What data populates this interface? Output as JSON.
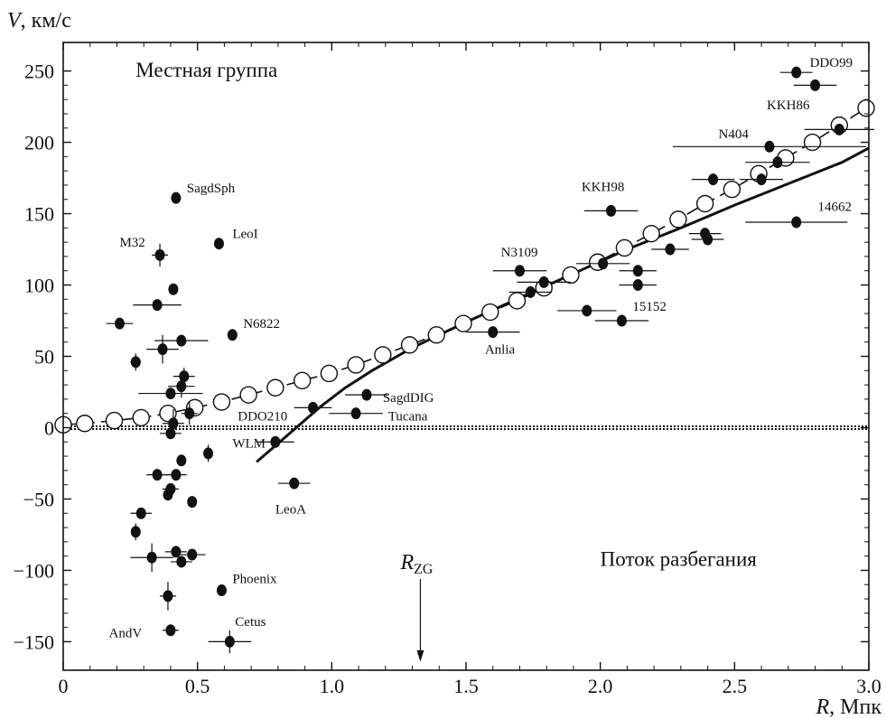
{
  "chart_data": {
    "type": "scatter",
    "title": "",
    "y_title": {
      "italic": "V",
      "rest": ", км/с"
    },
    "x_title": {
      "italic": "R",
      "rest": ", Мпк"
    },
    "xlim": [
      0,
      3.0
    ],
    "ylim": [
      -170,
      270
    ],
    "x_ticks": [
      {
        "value": 0,
        "label": "0"
      },
      {
        "value": 0.5,
        "label": "0.5"
      },
      {
        "value": 1.0,
        "label": "1.0"
      },
      {
        "value": 1.5,
        "label": "1.5"
      },
      {
        "value": 2.0,
        "label": "2.0"
      },
      {
        "value": 2.5,
        "label": "2.5"
      },
      {
        "value": 3.0,
        "label": "3.0"
      }
    ],
    "y_ticks": [
      {
        "value": -150,
        "label": "−150"
      },
      {
        "value": -100,
        "label": "−100"
      },
      {
        "value": -50,
        "label": "−50"
      },
      {
        "value": 0,
        "label": "0"
      },
      {
        "value": 50,
        "label": "50"
      },
      {
        "value": 100,
        "label": "100"
      },
      {
        "value": 150,
        "label": "150"
      },
      {
        "value": 200,
        "label": "200"
      },
      {
        "value": 250,
        "label": "250"
      }
    ],
    "region_labels": [
      {
        "text": "Местная группа",
        "x": 0.27,
        "y": 246
      },
      {
        "text": "Поток разбегания",
        "x": 2.0,
        "y": -97
      }
    ],
    "r_zg": {
      "label_main": "R",
      "label_sub": "ZG",
      "x": 1.33
    },
    "open_circles": {
      "x": [
        0,
        0.08,
        0.19,
        0.29,
        0.39,
        0.49,
        0.59,
        0.69,
        0.79,
        0.89,
        0.99,
        1.09,
        1.19,
        1.29,
        1.39,
        1.49,
        1.59,
        1.69,
        1.79,
        1.89,
        1.99,
        2.09,
        2.19,
        2.29,
        2.39,
        2.49,
        2.59,
        2.69,
        2.79,
        2.89,
        2.99
      ],
      "y": [
        2,
        3,
        5,
        7,
        10,
        14,
        18,
        23,
        28,
        33,
        38,
        44,
        51,
        58,
        65,
        73,
        81,
        89,
        98,
        107,
        116,
        126,
        136,
        146,
        157,
        167,
        178,
        189,
        200,
        212,
        224
      ]
    },
    "model_curve": {
      "x": [
        0.72,
        0.8,
        0.88,
        0.96,
        1.05,
        1.15,
        1.3,
        1.5,
        1.7,
        1.9,
        2.1,
        2.3,
        2.5,
        2.7,
        2.9,
        3.0
      ],
      "y": [
        -24,
        -11,
        2,
        15,
        28,
        40,
        56,
        74,
        91,
        108,
        125,
        140,
        156,
        171,
        186,
        196
      ]
    },
    "galaxies": [
      {
        "x": 0.42,
        "y": 161,
        "xerr": 0,
        "yerr": 0,
        "name": "SagdSph",
        "lx": 0.46,
        "ly": 165
      },
      {
        "x": 0.36,
        "y": 121,
        "xerr": 0.03,
        "yerr": 8,
        "name": "M32",
        "lx": 0.21,
        "ly": 127
      },
      {
        "x": 0.58,
        "y": 129,
        "xerr": 0,
        "yerr": 0,
        "name": "LeoI",
        "lx": 0.63,
        "ly": 133
      },
      {
        "x": 0.41,
        "y": 97,
        "xerr": 0,
        "yerr": 0,
        "name": "",
        "lx": 0,
        "ly": 0
      },
      {
        "x": 0.35,
        "y": 86,
        "xerr": 0.09,
        "yerr": 0,
        "name": "",
        "lx": 0,
        "ly": 0
      },
      {
        "x": 0.21,
        "y": 73,
        "xerr": 0.05,
        "yerr": 0,
        "name": "",
        "lx": 0,
        "ly": 0
      },
      {
        "x": 0.63,
        "y": 65,
        "xerr": 0,
        "yerr": 0,
        "name": "N6822",
        "lx": 0.67,
        "ly": 70
      },
      {
        "x": 0.44,
        "y": 61,
        "xerr": 0.1,
        "yerr": 0,
        "name": "",
        "lx": 0,
        "ly": 0
      },
      {
        "x": 0.37,
        "y": 55,
        "xerr": 0.06,
        "yerr": 10,
        "name": "",
        "lx": 0,
        "ly": 0
      },
      {
        "x": 0.27,
        "y": 46,
        "xerr": 0.02,
        "yerr": 6,
        "name": "",
        "lx": 0,
        "ly": 0
      },
      {
        "x": 0.45,
        "y": 36,
        "xerr": 0.04,
        "yerr": 6,
        "name": "",
        "lx": 0,
        "ly": 0
      },
      {
        "x": 0.44,
        "y": 29,
        "xerr": 0.05,
        "yerr": 8,
        "name": "",
        "lx": 0,
        "ly": 0
      },
      {
        "x": 0.4,
        "y": 24,
        "xerr": 0.12,
        "yerr": 0,
        "name": "",
        "lx": 0,
        "ly": 0
      },
      {
        "x": 0.47,
        "y": 10,
        "xerr": 0.03,
        "yerr": 8,
        "name": "",
        "lx": 0,
        "ly": 0
      },
      {
        "x": 0.41,
        "y": 3,
        "xerr": 0.04,
        "yerr": 10,
        "name": "",
        "lx": 0,
        "ly": 0
      },
      {
        "x": 0.4,
        "y": -4,
        "xerr": 0.04,
        "yerr": 0,
        "name": "",
        "lx": 0,
        "ly": 0
      },
      {
        "x": 0.93,
        "y": 14,
        "xerr": 0.07,
        "yerr": 0,
        "name": "DDO210",
        "lx": 0.65,
        "ly": 5
      },
      {
        "x": 1.13,
        "y": 23,
        "xerr": 0.08,
        "yerr": 0,
        "name": "SagdDIG",
        "lx": 1.19,
        "ly": 18
      },
      {
        "x": 1.09,
        "y": 10,
        "xerr": 0.1,
        "yerr": 0,
        "name": "Tucana",
        "lx": 1.21,
        "ly": 5
      },
      {
        "x": 0.79,
        "y": -10,
        "xerr": 0.07,
        "yerr": 0,
        "name": "WLM",
        "lx": 0.63,
        "ly": -14
      },
      {
        "x": 0.54,
        "y": -18,
        "xerr": 0,
        "yerr": 6,
        "name": "",
        "lx": 0,
        "ly": 0
      },
      {
        "x": 0.44,
        "y": -23,
        "xerr": 0,
        "yerr": 0,
        "name": "",
        "lx": 0,
        "ly": 0
      },
      {
        "x": 0.35,
        "y": -33,
        "xerr": 0.04,
        "yerr": 0,
        "name": "",
        "lx": 0,
        "ly": 0
      },
      {
        "x": 0.42,
        "y": -33,
        "xerr": 0.04,
        "yerr": 0,
        "name": "",
        "lx": 0,
        "ly": 0
      },
      {
        "x": 0.4,
        "y": -43,
        "xerr": 0.03,
        "yerr": 0,
        "name": "",
        "lx": 0,
        "ly": 0
      },
      {
        "x": 0.39,
        "y": -47,
        "xerr": 0,
        "yerr": 0,
        "name": "",
        "lx": 0,
        "ly": 0
      },
      {
        "x": 0.48,
        "y": -52,
        "xerr": 0,
        "yerr": 0,
        "name": "",
        "lx": 0,
        "ly": 0
      },
      {
        "x": 0.86,
        "y": -39,
        "xerr": 0.06,
        "yerr": 0,
        "name": "LeoA",
        "lx": 0.79,
        "ly": -60
      },
      {
        "x": 0.29,
        "y": -60,
        "xerr": 0.04,
        "yerr": 0,
        "name": "",
        "lx": 0,
        "ly": 0
      },
      {
        "x": 0.27,
        "y": -73,
        "xerr": 0,
        "yerr": 6,
        "name": "",
        "lx": 0,
        "ly": 0
      },
      {
        "x": 0.42,
        "y": -87,
        "xerr": 0.04,
        "yerr": 0,
        "name": "",
        "lx": 0,
        "ly": 0
      },
      {
        "x": 0.48,
        "y": -89,
        "xerr": 0.05,
        "yerr": 0,
        "name": "",
        "lx": 0,
        "ly": 0
      },
      {
        "x": 0.33,
        "y": -91,
        "xerr": 0.08,
        "yerr": 10,
        "name": "",
        "lx": 0,
        "ly": 0
      },
      {
        "x": 0.44,
        "y": -94,
        "xerr": 0.04,
        "yerr": 0,
        "name": "",
        "lx": 0,
        "ly": 0
      },
      {
        "x": 0.39,
        "y": -118,
        "xerr": 0.03,
        "yerr": 10,
        "name": "",
        "lx": 0,
        "ly": 0
      },
      {
        "x": 0.59,
        "y": -114,
        "xerr": 0,
        "yerr": 0,
        "name": "Phoenix",
        "lx": 0.63,
        "ly": -109
      },
      {
        "x": 0.4,
        "y": -142,
        "xerr": 0.03,
        "yerr": 0,
        "name": "AndV",
        "lx": 0.17,
        "ly": -147
      },
      {
        "x": 0.62,
        "y": -150,
        "xerr": 0.08,
        "yerr": 8,
        "name": "Cetus",
        "lx": 0.64,
        "ly": -139
      },
      {
        "x": 1.7,
        "y": 110,
        "xerr": 0.1,
        "yerr": 0,
        "name": "N3109",
        "lx": 1.63,
        "ly": 120
      },
      {
        "x": 1.79,
        "y": 102,
        "xerr": 0.1,
        "yerr": 0,
        "name": "",
        "lx": 0,
        "ly": 0
      },
      {
        "x": 1.74,
        "y": 95,
        "xerr": 0.08,
        "yerr": 0,
        "name": "",
        "lx": 0,
        "ly": 0
      },
      {
        "x": 1.6,
        "y": 67,
        "xerr": 0.1,
        "yerr": 0,
        "name": "Anlia",
        "lx": 1.57,
        "ly": 52
      },
      {
        "x": 2.04,
        "y": 152,
        "xerr": 0.1,
        "yerr": 0,
        "name": "KKH98",
        "lx": 1.93,
        "ly": 166
      },
      {
        "x": 2.01,
        "y": 115,
        "xerr": 0.1,
        "yerr": 0,
        "name": "",
        "lx": 0,
        "ly": 0
      },
      {
        "x": 2.14,
        "y": 110,
        "xerr": 0.07,
        "yerr": 0,
        "name": "",
        "lx": 0,
        "ly": 0
      },
      {
        "x": 2.14,
        "y": 100,
        "xerr": 0.07,
        "yerr": 0,
        "name": "",
        "lx": 0,
        "ly": 0
      },
      {
        "x": 1.95,
        "y": 82,
        "xerr": 0.11,
        "yerr": 0,
        "name": "",
        "lx": 0,
        "ly": 0
      },
      {
        "x": 2.08,
        "y": 75,
        "xerr": 0.1,
        "yerr": 0,
        "name": "15152",
        "lx": 2.12,
        "ly": 82
      },
      {
        "x": 2.26,
        "y": 125,
        "xerr": 0.07,
        "yerr": 0,
        "name": "",
        "lx": 0,
        "ly": 0
      },
      {
        "x": 2.39,
        "y": 136,
        "xerr": 0.06,
        "yerr": 0,
        "name": "",
        "lx": 0,
        "ly": 0
      },
      {
        "x": 2.4,
        "y": 132,
        "xerr": 0.06,
        "yerr": 0,
        "name": "",
        "lx": 0,
        "ly": 0
      },
      {
        "x": 2.42,
        "y": 174,
        "xerr": 0.08,
        "yerr": 0,
        "name": "",
        "lx": 0,
        "ly": 0
      },
      {
        "x": 2.6,
        "y": 174,
        "xerr": 0.08,
        "yerr": 0,
        "name": "",
        "lx": 0,
        "ly": 0
      },
      {
        "x": 2.63,
        "y": 197,
        "xerr": 0.36,
        "yerr": 0,
        "name": "N404",
        "lx": 2.44,
        "ly": 203
      },
      {
        "x": 2.66,
        "y": 186,
        "xerr": 0.12,
        "yerr": 0,
        "name": "",
        "lx": 0,
        "ly": 0
      },
      {
        "x": 2.73,
        "y": 249,
        "xerr": 0.06,
        "yerr": 0,
        "name": "DDO99",
        "lx": 2.78,
        "ly": 253
      },
      {
        "x": 2.8,
        "y": 240,
        "xerr": 0.08,
        "yerr": 0,
        "name": "",
        "lx": 0,
        "ly": 0
      },
      {
        "x": 2.89,
        "y": 209,
        "xerr": 0.13,
        "yerr": 0,
        "name": "KKH86",
        "lx": 2.62,
        "ly": 223
      },
      {
        "x": 2.73,
        "y": 144,
        "xerr": 0.19,
        "yerr": 0,
        "name": "14662",
        "lx": 2.81,
        "ly": 152
      }
    ]
  }
}
